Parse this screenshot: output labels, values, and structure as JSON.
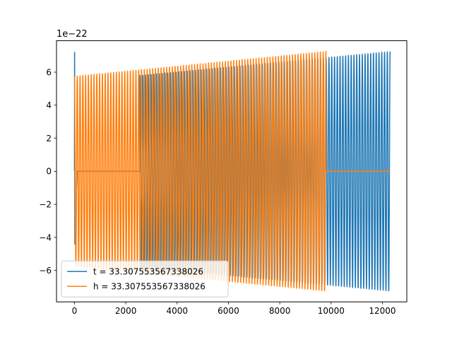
{
  "chart_data": {
    "type": "line",
    "title": "",
    "xlabel": "",
    "ylabel": "",
    "y_offset_label": "1e−22",
    "xlim": [
      -700,
      12950
    ],
    "ylim": [
      -7.9,
      7.9
    ],
    "x_ticks": [
      0,
      2000,
      4000,
      6000,
      8000,
      10000,
      12000
    ],
    "x_tick_labels": [
      "0",
      "2000",
      "4000",
      "6000",
      "8000",
      "10000",
      "12000"
    ],
    "y_ticks": [
      -6,
      -4,
      -2,
      0,
      2,
      4,
      6
    ],
    "y_tick_labels": [
      "−6",
      "−4",
      "−2",
      "0",
      "2",
      "4",
      "6"
    ],
    "grid": false,
    "legend_position": "lower-left",
    "series": [
      {
        "name": "t = 33.307553567338026",
        "color": "#1f77b4",
        "description_segments": [
          {
            "x_start": 0,
            "x_end": 100,
            "kind": "spike",
            "peak": 7.2,
            "trough": -4.4
          },
          {
            "x_start": 100,
            "x_end": 2550,
            "kind": "flat",
            "value": 0
          },
          {
            "x_start": 2550,
            "x_end": 12300,
            "kind": "chirp",
            "amp_start": 5.8,
            "amp_end": 7.25,
            "cycles": 90
          }
        ]
      },
      {
        "name": "h = 33.307553567338026",
        "color": "#ff7f0e",
        "description_segments": [
          {
            "x_start": 0,
            "x_end": 9800,
            "kind": "chirp",
            "amp_start": 5.75,
            "amp_end": 7.25,
            "cycles": 90
          },
          {
            "x_start": 9800,
            "x_end": 12300,
            "kind": "flat",
            "value": 0
          }
        ]
      }
    ]
  }
}
